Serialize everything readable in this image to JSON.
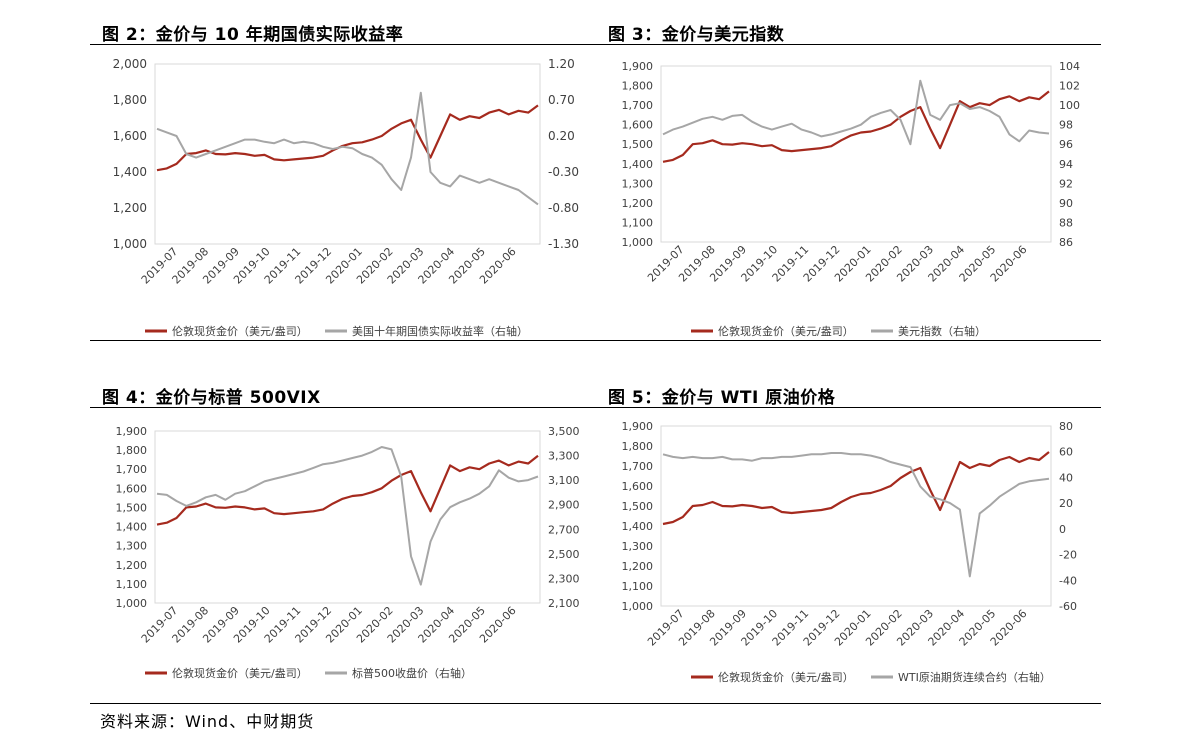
{
  "source": "资料来源：Wind、中财期货",
  "panels": [
    {
      "title": "图 2：金价与 10 年期国债实际收益率",
      "chart_data": {
        "type": "line",
        "x_labels": [
          "2019-07",
          "2019-08",
          "2019-09",
          "2019-10",
          "2019-11",
          "2019-12",
          "2020-01",
          "2020-02",
          "2020-03",
          "2020-04",
          "2020-05",
          "2020-06"
        ],
        "left_axis": {
          "ticks": [
            "2,000",
            "1,800",
            "1,600",
            "1,400",
            "1,200",
            "1,000"
          ],
          "min": 1000,
          "max": 2000
        },
        "right_axis": {
          "ticks": [
            "1.20",
            "0.70",
            "0.20",
            "-0.30",
            "-0.80",
            "-1.30"
          ],
          "min": -1.3,
          "max": 1.2
        },
        "series": [
          {
            "name": "伦敦现货金价（美元/盎司）",
            "axis": "left",
            "color": "#a52a1e",
            "values": [
              1410,
              1420,
              1445,
              1500,
              1505,
              1520,
              1500,
              1498,
              1505,
              1500,
              1490,
              1495,
              1470,
              1465,
              1470,
              1475,
              1480,
              1490,
              1520,
              1545,
              1560,
              1565,
              1580,
              1600,
              1640,
              1670,
              1690,
              1580,
              1480,
              1600,
              1720,
              1690,
              1710,
              1700,
              1730,
              1745,
              1720,
              1740,
              1730,
              1770
            ]
          },
          {
            "name": "美国十年期国债实际收益率（右轴）",
            "axis": "right",
            "color": "#a6a6a6",
            "values": [
              0.3,
              0.25,
              0.2,
              -0.05,
              -0.1,
              -0.05,
              0.0,
              0.05,
              0.1,
              0.15,
              0.15,
              0.12,
              0.1,
              0.15,
              0.1,
              0.12,
              0.1,
              0.05,
              0.02,
              0.05,
              0.03,
              -0.05,
              -0.1,
              -0.2,
              -0.4,
              -0.55,
              -0.1,
              0.8,
              -0.3,
              -0.45,
              -0.5,
              -0.35,
              -0.4,
              -0.45,
              -0.4,
              -0.45,
              -0.5,
              -0.55,
              -0.65,
              -0.75
            ]
          }
        ],
        "legend_position": "bottom"
      }
    },
    {
      "title": "图 3：金价与美元指数",
      "chart_data": {
        "type": "line",
        "x_labels": [
          "2019-07",
          "2019-08",
          "2019-09",
          "2019-10",
          "2019-11",
          "2019-12",
          "2020-01",
          "2020-02",
          "2020-03",
          "2020-04",
          "2020-05",
          "2020-06"
        ],
        "left_axis": {
          "ticks": [
            "1,900",
            "1,800",
            "1,700",
            "1,600",
            "1,500",
            "1,400",
            "1,300",
            "1,200",
            "1,100",
            "1,000"
          ],
          "min": 1000,
          "max": 1900
        },
        "right_axis": {
          "ticks": [
            "104",
            "102",
            "100",
            "98",
            "96",
            "94",
            "92",
            "90",
            "88",
            "86"
          ],
          "min": 86,
          "max": 104
        },
        "series": [
          {
            "name": "伦敦现货金价（美元/盎司）",
            "axis": "left",
            "color": "#a52a1e",
            "values": [
              1410,
              1420,
              1445,
              1500,
              1505,
              1520,
              1500,
              1498,
              1505,
              1500,
              1490,
              1495,
              1470,
              1465,
              1470,
              1475,
              1480,
              1490,
              1520,
              1545,
              1560,
              1565,
              1580,
              1600,
              1640,
              1670,
              1690,
              1580,
              1480,
              1600,
              1720,
              1690,
              1710,
              1700,
              1730,
              1745,
              1720,
              1740,
              1730,
              1770
            ]
          },
          {
            "name": "美元指数（右轴）",
            "axis": "right",
            "color": "#a6a6a6",
            "values": [
              97.0,
              97.5,
              97.8,
              98.2,
              98.6,
              98.8,
              98.5,
              98.9,
              99.0,
              98.3,
              97.8,
              97.5,
              97.8,
              98.1,
              97.5,
              97.2,
              96.8,
              97.0,
              97.3,
              97.6,
              98.0,
              98.8,
              99.2,
              99.5,
              98.5,
              96.0,
              102.5,
              99.0,
              98.5,
              100.0,
              100.2,
              99.6,
              99.8,
              99.4,
              98.8,
              97.0,
              96.3,
              97.4,
              97.2,
              97.1
            ]
          }
        ],
        "legend_position": "bottom"
      }
    },
    {
      "title": "图 4：金价与标普 500VIX",
      "chart_data": {
        "type": "line",
        "x_labels": [
          "2019-07",
          "2019-08",
          "2019-09",
          "2019-10",
          "2019-11",
          "2019-12",
          "2020-01",
          "2020-02",
          "2020-03",
          "2020-04",
          "2020-05",
          "2020-06"
        ],
        "left_axis": {
          "ticks": [
            "1,900",
            "1,800",
            "1,700",
            "1,600",
            "1,500",
            "1,400",
            "1,300",
            "1,200",
            "1,100",
            "1,000"
          ],
          "min": 1000,
          "max": 1900
        },
        "right_axis": {
          "ticks": [
            "3,500",
            "3,300",
            "3,100",
            "2,900",
            "2,700",
            "2,500",
            "2,300",
            "2,100"
          ],
          "min": 2100,
          "max": 3500
        },
        "series": [
          {
            "name": "伦敦现货金价（美元/盎司）",
            "axis": "left",
            "color": "#a52a1e",
            "values": [
              1410,
              1420,
              1445,
              1500,
              1505,
              1520,
              1500,
              1498,
              1505,
              1500,
              1490,
              1495,
              1470,
              1465,
              1470,
              1475,
              1480,
              1490,
              1520,
              1545,
              1560,
              1565,
              1580,
              1600,
              1640,
              1670,
              1690,
              1580,
              1480,
              1600,
              1720,
              1690,
              1710,
              1700,
              1730,
              1745,
              1720,
              1740,
              1730,
              1770
            ]
          },
          {
            "name": "标普500收盘价（右轴）",
            "axis": "right",
            "color": "#a6a6a6",
            "values": [
              2990,
              2980,
              2930,
              2890,
              2920,
              2960,
              2980,
              2940,
              2990,
              3010,
              3050,
              3090,
              3110,
              3130,
              3150,
              3170,
              3200,
              3230,
              3240,
              3260,
              3280,
              3300,
              3330,
              3370,
              3350,
              3130,
              2480,
              2250,
              2600,
              2780,
              2880,
              2920,
              2950,
              2990,
              3050,
              3180,
              3120,
              3090,
              3100,
              3130
            ]
          }
        ],
        "legend_position": "bottom"
      }
    },
    {
      "title": "图 5：金价与 WTI 原油价格",
      "chart_data": {
        "type": "line",
        "x_labels": [
          "2019-07",
          "2019-08",
          "2019-09",
          "2019-10",
          "2019-11",
          "2019-12",
          "2020-01",
          "2020-02",
          "2020-03",
          "2020-04",
          "2020-05",
          "2020-06"
        ],
        "left_axis": {
          "ticks": [
            "1,900",
            "1,800",
            "1,700",
            "1,600",
            "1,500",
            "1,400",
            "1,300",
            "1,200",
            "1,100",
            "1,000"
          ],
          "min": 1000,
          "max": 1900
        },
        "right_axis": {
          "ticks": [
            "80",
            "60",
            "40",
            "20",
            "0",
            "-20",
            "-40",
            "-60"
          ],
          "min": -60,
          "max": 80
        },
        "series": [
          {
            "name": "伦敦现货金价（美元/盎司）",
            "axis": "left",
            "color": "#a52a1e",
            "values": [
              1410,
              1420,
              1445,
              1500,
              1505,
              1520,
              1500,
              1498,
              1505,
              1500,
              1490,
              1495,
              1470,
              1465,
              1470,
              1475,
              1480,
              1490,
              1520,
              1545,
              1560,
              1565,
              1580,
              1600,
              1640,
              1670,
              1690,
              1580,
              1480,
              1600,
              1720,
              1690,
              1710,
              1700,
              1730,
              1745,
              1720,
              1740,
              1730,
              1770
            ]
          },
          {
            "name": "WTI原油期货连续合约（右轴）",
            "axis": "right",
            "color": "#a6a6a6",
            "values": [
              58,
              56,
              55,
              56,
              55,
              55,
              56,
              54,
              54,
              53,
              55,
              55,
              56,
              56,
              57,
              58,
              58,
              59,
              59,
              58,
              58,
              57,
              55,
              52,
              50,
              48,
              33,
              25,
              23,
              20,
              15,
              -37,
              12,
              18,
              25,
              30,
              35,
              37,
              38,
              39
            ]
          }
        ],
        "legend_position": "bottom"
      }
    }
  ]
}
